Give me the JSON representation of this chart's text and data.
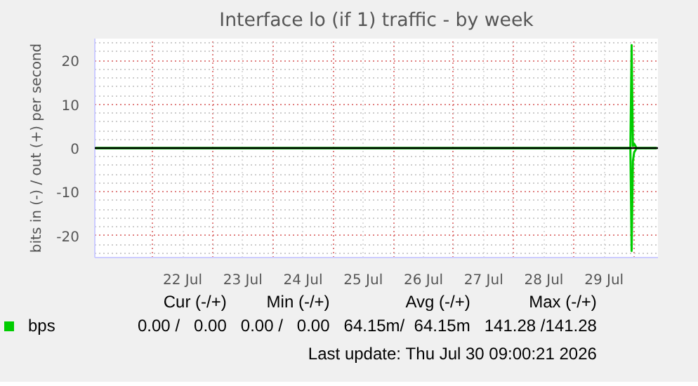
{
  "chart_data": {
    "type": "line",
    "title": "Interface lo (if 1) traffic - by week",
    "ylabel": "bits in (-) / out (+) per second",
    "x": [
      "2026-07-21T01:00",
      "2026-07-29T22:30",
      "2026-07-29T23:00",
      "2026-07-29T23:30",
      "2026-07-30T00:00",
      "2026-07-30T01:00",
      "2026-07-30T09:00"
    ],
    "series": [
      {
        "name": "bps",
        "color": "#00cc00",
        "values": [
          0,
          0,
          23.5,
          0.5,
          1,
          0,
          0
        ]
      },
      {
        "color": "#00cc00",
        "values": [
          0,
          0,
          -23.5,
          -3,
          -1,
          0,
          0
        ]
      }
    ],
    "xlim": [
      "2026-07-21T01:00",
      "2026-07-30T09:30"
    ],
    "xticks": [
      {
        "value": "2026-07-22T12:00",
        "label": "22 Jul"
      },
      {
        "value": "2026-07-23T12:00",
        "label": "23 Jul"
      },
      {
        "value": "2026-07-24T12:00",
        "label": "24 Jul"
      },
      {
        "value": "2026-07-25T12:00",
        "label": "25 Jul"
      },
      {
        "value": "2026-07-26T12:00",
        "label": "26 Jul"
      },
      {
        "value": "2026-07-27T12:00",
        "label": "27 Jul"
      },
      {
        "value": "2026-07-28T12:00",
        "label": "28 Jul"
      },
      {
        "value": "2026-07-29T12:00",
        "label": "29 Jul"
      }
    ],
    "ylim": [
      -25,
      25
    ],
    "yticks": [
      -20,
      -10,
      0,
      10,
      20
    ],
    "grid": true,
    "legend": "bottom",
    "ref_lines": [
      {
        "axis": "y",
        "value": 0,
        "color": "#000000"
      }
    ],
    "annotations": [
      "Cur (-/+)",
      "Min (-/+)",
      "Avg (-/+)",
      "Max (-/+)",
      "0.00 /   0.00",
      "0.00 /   0.00",
      "64.15m/  64.15m",
      "141.28 /141.28",
      "Last update: Thu Jul 30 09:00:21 2026"
    ]
  }
}
